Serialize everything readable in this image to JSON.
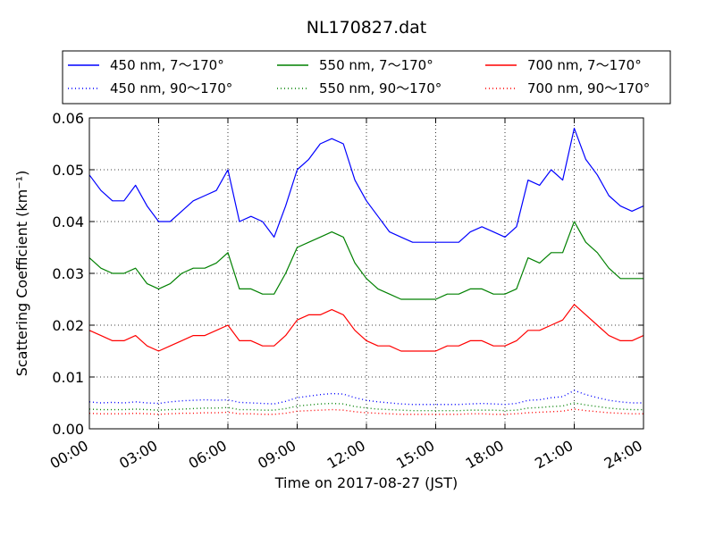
{
  "chart_data": {
    "type": "line",
    "title": "NL170827.dat",
    "xlabel": "Time on 2017-08-27 (JST)",
    "ylabel": "Scattering Coefficient (km⁻¹)",
    "xlim": [
      "00:00",
      "24:00"
    ],
    "ylim": [
      0,
      0.06
    ],
    "grid": true,
    "legend_position": "top",
    "x_ticks": [
      "00:00",
      "03:00",
      "06:00",
      "09:00",
      "12:00",
      "15:00",
      "18:00",
      "21:00",
      "24:00"
    ],
    "y_ticks": [
      "0.00",
      "0.01",
      "0.02",
      "0.03",
      "0.04",
      "0.05",
      "0.06"
    ],
    "x": [
      "00:00",
      "00:30",
      "01:00",
      "01:30",
      "02:00",
      "02:30",
      "03:00",
      "03:30",
      "04:00",
      "04:30",
      "05:00",
      "05:30",
      "06:00",
      "06:30",
      "07:00",
      "07:30",
      "08:00",
      "08:30",
      "09:00",
      "09:30",
      "10:00",
      "10:30",
      "11:00",
      "11:30",
      "12:00",
      "12:30",
      "13:00",
      "13:30",
      "14:00",
      "14:30",
      "15:00",
      "15:30",
      "16:00",
      "16:30",
      "17:00",
      "17:30",
      "18:00",
      "18:30",
      "19:00",
      "19:30",
      "20:00",
      "20:30",
      "21:00",
      "21:30",
      "22:00",
      "22:30",
      "23:00",
      "23:30",
      "24:00"
    ],
    "series": [
      {
        "name": "450 nm, 7～170°",
        "color": "#0000ff",
        "style": "solid",
        "values": [
          0.049,
          0.046,
          0.044,
          0.044,
          0.047,
          0.043,
          0.04,
          0.04,
          0.042,
          0.044,
          0.045,
          0.046,
          0.05,
          0.04,
          0.041,
          0.04,
          0.037,
          0.043,
          0.05,
          0.052,
          0.055,
          0.056,
          0.055,
          0.048,
          0.044,
          0.041,
          0.038,
          0.037,
          0.036,
          0.036,
          0.036,
          0.036,
          0.036,
          0.038,
          0.039,
          0.038,
          0.037,
          0.039,
          0.048,
          0.047,
          0.05,
          0.048,
          0.058,
          0.052,
          0.049,
          0.045,
          0.043,
          0.042,
          0.043
        ]
      },
      {
        "name": "450 nm, 90～170°",
        "color": "#0000ff",
        "style": "dotted",
        "values": [
          0.0052,
          0.005,
          0.0051,
          0.005,
          0.0052,
          0.005,
          0.0049,
          0.0052,
          0.0054,
          0.0055,
          0.0056,
          0.0055,
          0.0056,
          0.0051,
          0.005,
          0.0049,
          0.0048,
          0.0053,
          0.006,
          0.0063,
          0.0066,
          0.0068,
          0.0067,
          0.006,
          0.0055,
          0.0052,
          0.005,
          0.0048,
          0.0047,
          0.0047,
          0.0047,
          0.0047,
          0.0047,
          0.0048,
          0.0049,
          0.0048,
          0.0047,
          0.0049,
          0.0055,
          0.0056,
          0.006,
          0.0062,
          0.0074,
          0.0066,
          0.006,
          0.0055,
          0.0052,
          0.005,
          0.005
        ]
      },
      {
        "name": "550 nm, 7～170°",
        "color": "#008000",
        "style": "solid",
        "values": [
          0.033,
          0.031,
          0.03,
          0.03,
          0.031,
          0.028,
          0.027,
          0.028,
          0.03,
          0.031,
          0.031,
          0.032,
          0.034,
          0.027,
          0.027,
          0.026,
          0.026,
          0.03,
          0.035,
          0.036,
          0.037,
          0.038,
          0.037,
          0.032,
          0.029,
          0.027,
          0.026,
          0.025,
          0.025,
          0.025,
          0.025,
          0.026,
          0.026,
          0.027,
          0.027,
          0.026,
          0.026,
          0.027,
          0.033,
          0.032,
          0.034,
          0.034,
          0.04,
          0.036,
          0.034,
          0.031,
          0.029,
          0.029,
          0.029
        ]
      },
      {
        "name": "550 nm, 90～170°",
        "color": "#008000",
        "style": "dotted",
        "values": [
          0.0038,
          0.0037,
          0.0037,
          0.0037,
          0.0038,
          0.0037,
          0.0036,
          0.0037,
          0.0038,
          0.0039,
          0.004,
          0.004,
          0.0041,
          0.0037,
          0.0037,
          0.0036,
          0.0036,
          0.0039,
          0.0044,
          0.0046,
          0.0048,
          0.0049,
          0.0048,
          0.0043,
          0.004,
          0.0038,
          0.0037,
          0.0036,
          0.0035,
          0.0035,
          0.0035,
          0.0035,
          0.0035,
          0.0036,
          0.0036,
          0.0036,
          0.0035,
          0.0036,
          0.004,
          0.0041,
          0.0043,
          0.0044,
          0.005,
          0.0046,
          0.0043,
          0.004,
          0.0038,
          0.0037,
          0.0037
        ]
      },
      {
        "name": "700 nm, 7～170°",
        "color": "#ff0000",
        "style": "solid",
        "values": [
          0.019,
          0.018,
          0.017,
          0.017,
          0.018,
          0.016,
          0.015,
          0.016,
          0.017,
          0.018,
          0.018,
          0.019,
          0.02,
          0.017,
          0.017,
          0.016,
          0.016,
          0.018,
          0.021,
          0.022,
          0.022,
          0.023,
          0.022,
          0.019,
          0.017,
          0.016,
          0.016,
          0.015,
          0.015,
          0.015,
          0.015,
          0.016,
          0.016,
          0.017,
          0.017,
          0.016,
          0.016,
          0.017,
          0.019,
          0.019,
          0.02,
          0.021,
          0.024,
          0.022,
          0.02,
          0.018,
          0.017,
          0.017,
          0.018
        ]
      },
      {
        "name": "700 nm, 90～170°",
        "color": "#ff0000",
        "style": "dotted",
        "values": [
          0.003,
          0.0029,
          0.0029,
          0.0029,
          0.003,
          0.0029,
          0.0028,
          0.0029,
          0.003,
          0.003,
          0.0031,
          0.0031,
          0.0032,
          0.0029,
          0.0029,
          0.0028,
          0.0028,
          0.003,
          0.0034,
          0.0035,
          0.0036,
          0.0037,
          0.0036,
          0.0033,
          0.0031,
          0.003,
          0.0029,
          0.0028,
          0.0028,
          0.0028,
          0.0028,
          0.0028,
          0.0028,
          0.0029,
          0.0029,
          0.0028,
          0.0028,
          0.0029,
          0.0031,
          0.0032,
          0.0033,
          0.0034,
          0.0038,
          0.0035,
          0.0033,
          0.0031,
          0.003,
          0.0029,
          0.0029
        ]
      }
    ]
  }
}
